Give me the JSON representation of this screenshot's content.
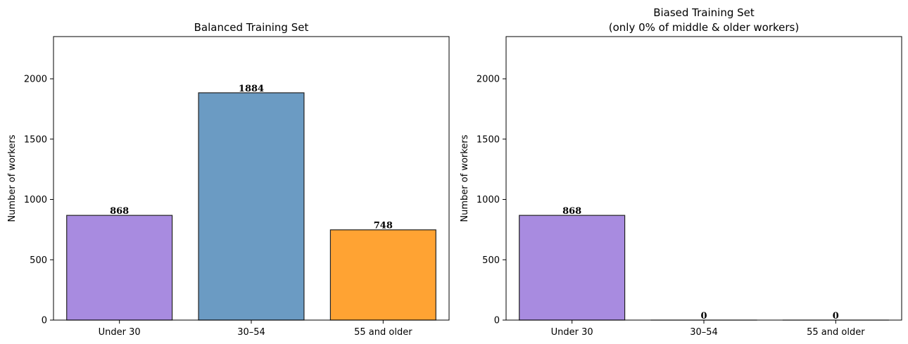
{
  "chart_data": [
    {
      "type": "bar",
      "title": "Balanced Training Set",
      "subtitle": "",
      "xlabel": "",
      "ylabel": "Number of workers",
      "categories": [
        "Under 30",
        "30–54",
        "55 and older"
      ],
      "values": [
        868,
        1884,
        748
      ],
      "value_labels": [
        "868",
        "1884",
        "748"
      ],
      "colors": [
        "#a88be0",
        "#6b9bc3",
        "#ffa333"
      ],
      "edge_color": "#222222",
      "ylim": [
        0,
        2350
      ],
      "yticks": [
        0,
        500,
        1000,
        1500,
        2000
      ],
      "ytick_labels": [
        "0",
        "500",
        "1000",
        "1500",
        "2000"
      ],
      "grid": false,
      "legend": "none"
    },
    {
      "type": "bar",
      "title": "Biased Training Set",
      "subtitle": "(only 0% of middle & older workers)",
      "xlabel": "",
      "ylabel": "Number of workers",
      "categories": [
        "Under 30",
        "30–54",
        "55 and older"
      ],
      "values": [
        868,
        0,
        0
      ],
      "value_labels": [
        "868",
        "0",
        "0"
      ],
      "colors": [
        "#a88be0",
        "#6b9bc3",
        "#ffa333"
      ],
      "edge_color": "#222222",
      "ylim": [
        0,
        2350
      ],
      "yticks": [
        0,
        500,
        1000,
        1500,
        2000
      ],
      "ytick_labels": [
        "0",
        "500",
        "1000",
        "1500",
        "2000"
      ],
      "grid": false,
      "legend": "none"
    }
  ]
}
